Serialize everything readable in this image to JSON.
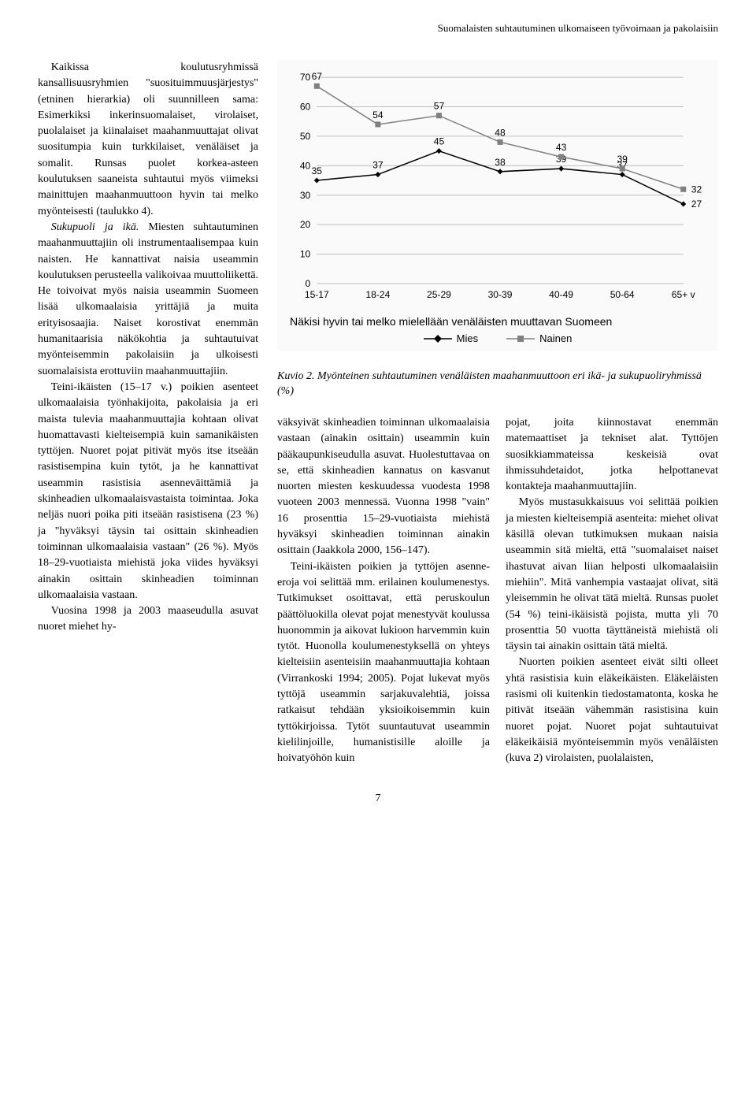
{
  "running_header": "Suomalaisten suhtautuminen ulkomaiseen työvoimaan ja pakolaisiin",
  "left_column": {
    "p1": "Kaikissa koulutusryhmissä kansallisuusryhmien \"suosituimmuusjärjestys\" (etninen hierarkia) oli suunnilleen sama: Esimerkiksi inkerinsuomalaiset, virolaiset, puolalaiset ja kiinalaiset maahanmuuttajat olivat suositumpia kuin turkkilaiset, venäläiset ja somalit. Runsas puolet korkea-asteen koulutuksen saaneista suhtautui myös viimeksi mainittujen maahanmuuttoon hyvin tai melko myönteisesti (taulukko 4).",
    "p2_prefix_italic": "Sukupuoli ja ikä.",
    "p2": " Miesten suhtautuminen maahanmuuttajiin oli instrumentaalisempaa kuin naisten. He kannattivat naisia useammin koulutuksen perusteella valikoivaa muuttoliikettä. He toivoivat myös naisia useammin Suomeen lisää ulkomaalaisia yrittäjiä ja muita erityisosaajia. Naiset korostivat enemmän humanitaarisia näkökohtia ja suhtautuivat myönteisemmin pakolaisiin ja ulkoisesti suomalaisista erottuviin maahanmuuttajiin.",
    "p3": "Teini-ikäisten (15–17 v.) poikien asenteet ulkomaalaisia työnhakijoita, pakolaisia ja eri maista tulevia maahanmuuttajia kohtaan olivat huomattavasti kielteisempiä kuin samanikäisten tyttöjen. Nuoret pojat pitivät myös itse itseään rasistisempina kuin tytöt, ja he kannattivat useammin rasistisia asenneväittämiä ja skinheadien ulkomaalaisvastaista toimintaa. Joka neljäs nuori poika piti itseään rasistisena (23 %) ja \"hyväksyi täysin tai osittain skinheadien toiminnan ulkomaalaisia vastaan\" (26 %). Myös 18–29-vuotiaista miehistä joka viides hyväksyi ainakin osittain skinheadien toiminnan ulkomaalaisia vastaan.",
    "p4": "Vuosina 1998 ja 2003 maaseudulla asuvat nuoret miehet hy-"
  },
  "chart": {
    "type": "line",
    "categories": [
      "15-17",
      "18-24",
      "25-29",
      "30-39",
      "40-49",
      "50-64",
      "65+ v"
    ],
    "series": [
      {
        "name": "Mies",
        "marker": "diamond",
        "color": "#000000",
        "values": [
          35,
          37,
          45,
          38,
          39,
          37,
          27
        ]
      },
      {
        "name": "Nainen",
        "marker": "square",
        "color": "#808080",
        "values": [
          67,
          54,
          57,
          48,
          43,
          39,
          32
        ]
      }
    ],
    "ylim": [
      0,
      70
    ],
    "ytick_step": 10,
    "grid_color": "#bfbfbf",
    "background_color": "#ffffff",
    "line_width": 1.5,
    "marker_size": 7,
    "label_fontsize": 12,
    "subtitle": "Näkisi hyvin tai melko mielellään venäläisten muuttavan Suomeen"
  },
  "figure_caption": "Kuvio 2. Myönteinen suhtautuminen venäläisten maahanmuuttoon eri ikä- ja sukupuoliryhmissä (%)",
  "middle_column": {
    "p1": "väksyivät skinheadien toiminnan ulkomaalaisia vastaan (ainakin osittain) useammin kuin pääkaupunkiseudulla asuvat. Huolestuttavaa on se, että skinheadien kannatus on kasvanut nuorten miesten keskuudessa vuodesta 1998 vuoteen 2003 mennessä. Vuonna 1998 \"vain\" 16 prosenttia 15–29-vuotiaista miehistä hyväksyi skinheadien toiminnan ainakin osittain (Jaakkola 2000, 156–147).",
    "p2": "Teini-ikäisten poikien ja tyttöjen asenne-eroja voi selittää mm. erilainen koulumenestys. Tutkimukset osoittavat, että peruskoulun päättöluokilla olevat pojat menestyvät koulussa huonommin ja aikovat lukioon harvemmin kuin tytöt. Huonolla koulumenestyksellä on yhteys kielteisiin asenteisiin maahanmuuttajia kohtaan (Virrankoski 1994; 2005). Pojat lukevat myös tyttöjä useammin sarjakuvalehtiä, joissa ratkaisut tehdään yksioikoisemmin kuin tyttökirjoissa. Tytöt suuntautuvat useammin kielilinjoille, humanistisille aloille ja hoivatyöhön kuin"
  },
  "right_column": {
    "p1": "pojat, joita kiinnostavat enemmän matemaattiset ja tekniset alat. Tyttöjen suosikkiammateissa keskeisiä ovat ihmissuhdetaidot, jotka helpottanevat kontakteja maahanmuuttajiin.",
    "p2": "Myös mustasukkaisuus voi selittää poikien ja miesten kielteisempiä asenteita: miehet olivat käsillä olevan tutkimuksen mukaan naisia useammin sitä mieltä, että \"suomalaiset naiset ihastuvat aivan liian helposti ulkomaalaisiin miehiin\". Mitä vanhempia vastaajat olivat, sitä yleisemmin he olivat tätä mieltä. Runsas puolet (54 %) teini-ikäisistä pojista, mutta yli 70 prosenttia 50 vuotta täyttäneistä miehistä oli täysin tai ainakin osittain tätä mieltä.",
    "p3": "Nuorten poikien asenteet eivät silti olleet yhtä rasistisia kuin eläkeikäisten. Eläkeläisten rasismi oli kuitenkin tiedostamatonta, koska he pitivät itseään vähemmän rasistisina kuin nuoret pojat. Nuoret pojat suhtautuivat eläkeikäisiä myönteisemmin myös venäläisten (kuva 2) virolaisten, puolalaisten,"
  },
  "page_number": "7"
}
